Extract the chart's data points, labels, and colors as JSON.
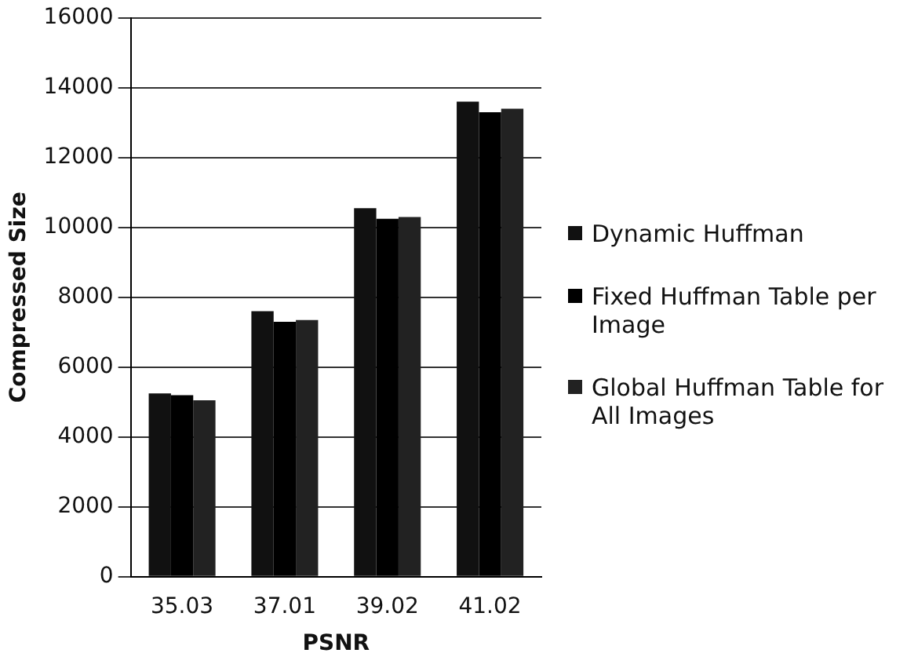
{
  "chart_data": {
    "type": "bar",
    "xlabel": "PSNR",
    "ylabel": "Compressed Size",
    "categories": [
      "35.03",
      "37.01",
      "39.02",
      "41.02"
    ],
    "series": [
      {
        "name": "Dynamic Huffman",
        "color": "#111111",
        "values": [
          5250,
          7600,
          10550,
          13600
        ]
      },
      {
        "name": "Fixed Huffman Table per Image",
        "color": "#000000",
        "values": [
          5200,
          7300,
          10250,
          13300
        ]
      },
      {
        "name": "Global Huffman Table for All Images",
        "color": "#222222",
        "values": [
          5050,
          7350,
          10300,
          13400
        ]
      }
    ],
    "ylim": [
      0,
      16000
    ],
    "yticks": [
      0,
      2000,
      4000,
      6000,
      8000,
      10000,
      12000,
      14000,
      16000
    ],
    "grid": "y",
    "legend": "right"
  }
}
